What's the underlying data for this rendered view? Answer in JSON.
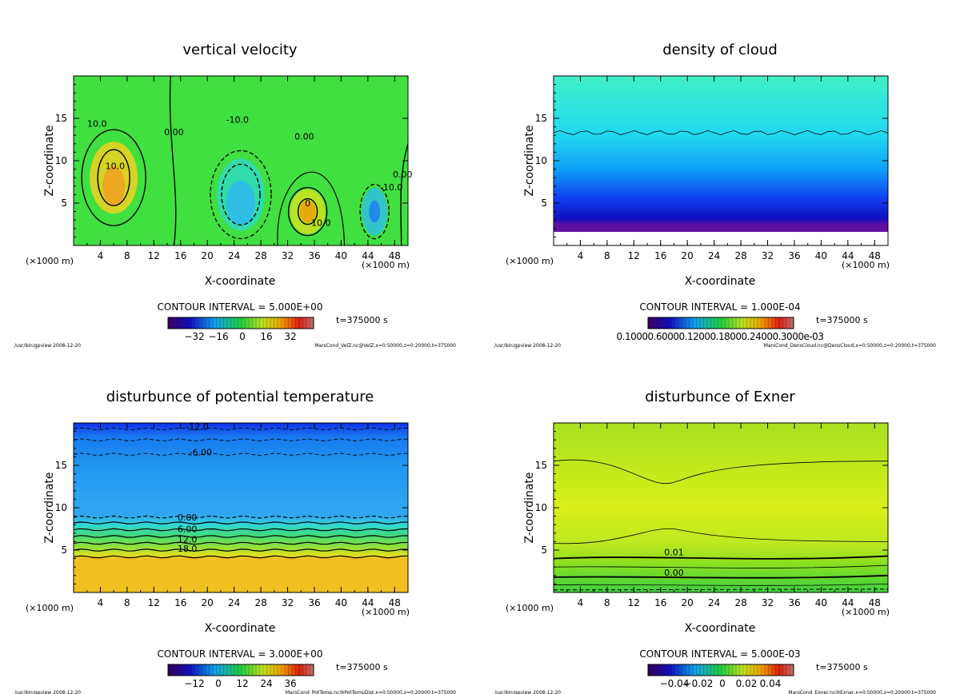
{
  "chart_data": [
    {
      "type": "heatmap",
      "title": "vertical velocity",
      "xlabel": "X-coordinate",
      "ylabel": "Z-coordinate",
      "x_unit": "(×1000 m)",
      "xlim": [
        0,
        50
      ],
      "ylim": [
        0,
        20
      ],
      "xticks": [
        "4",
        "8",
        "12",
        "16",
        "20",
        "24",
        "28",
        "32",
        "36",
        "40",
        "44",
        "48"
      ],
      "yticks": [
        "5",
        "10",
        "15"
      ],
      "contour_interval": "CONTOUR INTERVAL = 5.000E+00",
      "time": "t=375000 s",
      "colorbar_ticks": [
        "−32",
        "−16",
        "0",
        "16",
        "32"
      ],
      "colorbar_range": [
        -40,
        40
      ],
      "contour_labels": [
        "10.0",
        "10.0",
        "0.00",
        "-10.0",
        "0.00",
        "10.0",
        "-10.0",
        "0.00",
        "0"
      ],
      "footer_left": "/usr/bin/gpview  2008-12-20",
      "footer_right": "MarsCond_VelZ.nc@VelZ,x=0:50000,z=0:20000,t=375000"
    },
    {
      "type": "heatmap",
      "title": "density of cloud",
      "xlabel": "X-coordinate",
      "ylabel": "Z-coordinate",
      "x_unit": "(×1000 m)",
      "xlim": [
        0,
        50
      ],
      "ylim": [
        0,
        20
      ],
      "xticks": [
        "4",
        "8",
        "12",
        "16",
        "20",
        "24",
        "28",
        "32",
        "36",
        "40",
        "44",
        "48"
      ],
      "yticks": [
        "5",
        "10",
        "15"
      ],
      "contour_interval": "CONTOUR INTERVAL = 1.000E-04",
      "time": "t=375000 s",
      "colorbar_ticks": [
        "0.10000.60000.12000.18000.24000.3000e-03"
      ],
      "contour_labels": [],
      "footer_left": "/usr/bin/gpview  2008-12-20",
      "footer_right": "MarsCond_DensCloud.nc@DensCloud,x=0:50000,z=0:20000,t=375000"
    },
    {
      "type": "heatmap",
      "title": "disturbunce of potential temperature",
      "xlabel": "X-coordinate",
      "ylabel": "Z-coordinate",
      "x_unit": "(×1000 m)",
      "xlim": [
        0,
        50
      ],
      "ylim": [
        0,
        20
      ],
      "xticks": [
        "4",
        "8",
        "12",
        "16",
        "20",
        "24",
        "28",
        "32",
        "36",
        "40",
        "44",
        "48"
      ],
      "yticks": [
        "5",
        "10",
        "15"
      ],
      "contour_interval": "CONTOUR INTERVAL = 3.000E+00",
      "time": "t=375000 s",
      "colorbar_ticks": [
        "−12",
        "0",
        "12",
        "24",
        "36"
      ],
      "contour_labels": [
        "-12.0",
        "-6.00",
        "0.00",
        "6.00",
        "12.0",
        "18.0"
      ],
      "footer_left": "/usr/bin/gpview  2008-12-20",
      "footer_right": "MarsCond_PotTemp.nc@PotTempDist,x=0:50000,z=0:20000,t=375000"
    },
    {
      "type": "heatmap",
      "title": "disturbunce of Exner",
      "xlabel": "X-coordinate",
      "ylabel": "Z-coordinate",
      "x_unit": "(×1000 m)",
      "xlim": [
        0,
        50
      ],
      "ylim": [
        0,
        20
      ],
      "xticks": [
        "4",
        "8",
        "12",
        "16",
        "20",
        "24",
        "28",
        "32",
        "36",
        "40",
        "44",
        "48"
      ],
      "yticks": [
        "5",
        "10",
        "15"
      ],
      "contour_interval": "CONTOUR INTERVAL = 5.000E-03",
      "time": "t=375000 s",
      "colorbar_ticks": [
        "−0.04",
        "−0.02",
        "0",
        "0.02",
        "0.04"
      ],
      "contour_labels": [
        "0.01",
        "0.00"
      ],
      "footer_left": "/usr/bin/gpview  2008-12-20",
      "footer_right": "MarsCond_Exner.nc@Exner,x=0:50000,z=0:20000,t=375000"
    }
  ]
}
